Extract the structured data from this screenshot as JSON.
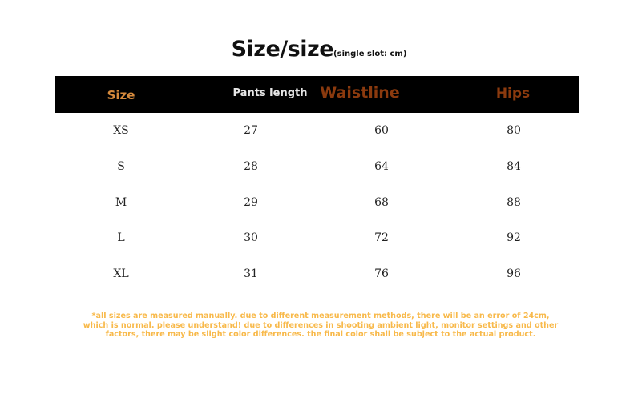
{
  "title": {
    "main": "Size/size",
    "sub": "(single slot: cm)"
  },
  "headers": [
    {
      "label": "Size",
      "color": "#d68a3c"
    },
    {
      "label": "Pants length",
      "color": "#e6e6e6"
    },
    {
      "label": "Waistline",
      "color": "#8b3a0e"
    },
    {
      "label": "Hips",
      "color": "#8b3a0e"
    }
  ],
  "rows": [
    [
      "XS",
      "27",
      "60",
      "80"
    ],
    [
      "S",
      "28",
      "64",
      "84"
    ],
    [
      "M",
      "29",
      "68",
      "88"
    ],
    [
      "L",
      "30",
      "72",
      "92"
    ],
    [
      "XL",
      "31",
      "76",
      "96"
    ]
  ],
  "note": "*all sizes are measured manually. due to different measurement methods, there will be an error of 24cm, which is normal. please understand! due to differences in shooting ambient light, monitor settings and other factors, there may be slight color differences. the final color shall be subject to the actual product."
}
